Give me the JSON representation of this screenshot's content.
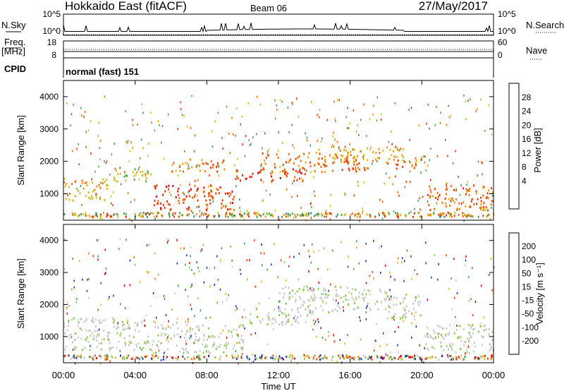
{
  "header": {
    "title": "Hokkaido East (fitACF)",
    "beam": "Beam 06",
    "date": "27/May/2017"
  },
  "panels": {
    "nsky": {
      "label": "N.Sky",
      "left_ticks": [
        "10^5",
        "10^0"
      ],
      "right_label": "N.Search",
      "right_ticks": [
        "10^5",
        "10^0"
      ]
    },
    "freq": {
      "label_line1": "Freq.",
      "label_line2": "[MHz]",
      "left_ticks": [
        "18",
        "8"
      ],
      "right_label": "Nave",
      "right_ticks": [
        "60",
        "0"
      ]
    },
    "cpid": {
      "label": "CPID",
      "value": "normal (fast) 151"
    }
  },
  "colors": {
    "power": [
      "#0022ee",
      "#2f5fb0",
      "#3c8a6c",
      "#4aa24a",
      "#c8c020",
      "#f0a000",
      "#f06a00",
      "#ee3300",
      "#e00000"
    ],
    "velocity": [
      "#e00000",
      "#f04000",
      "#f08000",
      "#e0b020",
      "#c8c8c8",
      "#7fcc40",
      "#3a9a50",
      "#1a3aaa",
      "#2020cc"
    ]
  },
  "chart_data": [
    {
      "type": "heatmap",
      "title": "",
      "ylabel": "Slant Range [km]",
      "xlabel": "Time UT",
      "x_ticks": [
        "00:00",
        "04:00",
        "08:00",
        "12:00",
        "16:00",
        "20:00",
        "00:00"
      ],
      "xlim": [
        0,
        24
      ],
      "ylim": [
        180,
        4500
      ],
      "y_ticks": [
        1000,
        2000,
        3000,
        4000
      ],
      "colorbar": {
        "label": "Power [dB]",
        "ticks": [
          4,
          8,
          12,
          16,
          20,
          24,
          28
        ],
        "range": [
          0,
          30
        ]
      },
      "echo_bands": [
        {
          "t": [
            0,
            2.5
          ],
          "r": [
            800,
            1500
          ],
          "power": 20
        },
        {
          "t": [
            2.5,
            5
          ],
          "r": [
            1400,
            1800
          ],
          "power": 16
        },
        {
          "t": [
            5,
            9.5
          ],
          "r": [
            500,
            1300
          ],
          "power": 26
        },
        {
          "t": [
            6,
            9
          ],
          "r": [
            1700,
            2100
          ],
          "power": 22
        },
        {
          "t": [
            9.5,
            13.5
          ],
          "r": [
            1400,
            1800
          ],
          "power": 26
        },
        {
          "t": [
            11,
            17
          ],
          "r": [
            1700,
            2300
          ],
          "power": 24
        },
        {
          "t": [
            15,
            19
          ],
          "r": [
            2000,
            2500
          ],
          "power": 18
        },
        {
          "t": [
            18,
            20
          ],
          "r": [
            1800,
            2200
          ],
          "power": 24
        },
        {
          "t": [
            20,
            24
          ],
          "r": [
            500,
            1300
          ],
          "power": 22
        }
      ]
    },
    {
      "type": "heatmap",
      "title": "",
      "ylabel": "Slant Range [km]",
      "xlabel": "Time UT",
      "x_ticks": [
        "00:00",
        "04:00",
        "08:00",
        "12:00",
        "16:00",
        "20:00",
        "00:00"
      ],
      "xlim": [
        0,
        24
      ],
      "ylim": [
        180,
        4500
      ],
      "y_ticks": [
        1000,
        2000,
        3000,
        4000
      ],
      "colorbar": {
        "label": "Velocity [m s⁻¹]",
        "ticks": [
          "200",
          "100",
          "50",
          "15",
          "-15",
          "-50",
          "-100",
          "-200"
        ],
        "range": [
          -250,
          250
        ]
      },
      "echo_bands": [
        {
          "t": [
            0,
            5
          ],
          "r": [
            600,
            1600
          ],
          "velocity": 0
        },
        {
          "t": [
            5,
            10
          ],
          "r": [
            500,
            1400
          ],
          "velocity": 0
        },
        {
          "t": [
            10,
            14
          ],
          "r": [
            1400,
            1900
          ],
          "velocity": 0
        },
        {
          "t": [
            12,
            18
          ],
          "r": [
            1800,
            2600
          ],
          "velocity": 0
        },
        {
          "t": [
            18,
            20
          ],
          "r": [
            1500,
            2300
          ],
          "velocity": 0
        },
        {
          "t": [
            20,
            24
          ],
          "r": [
            500,
            1400
          ],
          "velocity": 0
        }
      ]
    }
  ]
}
